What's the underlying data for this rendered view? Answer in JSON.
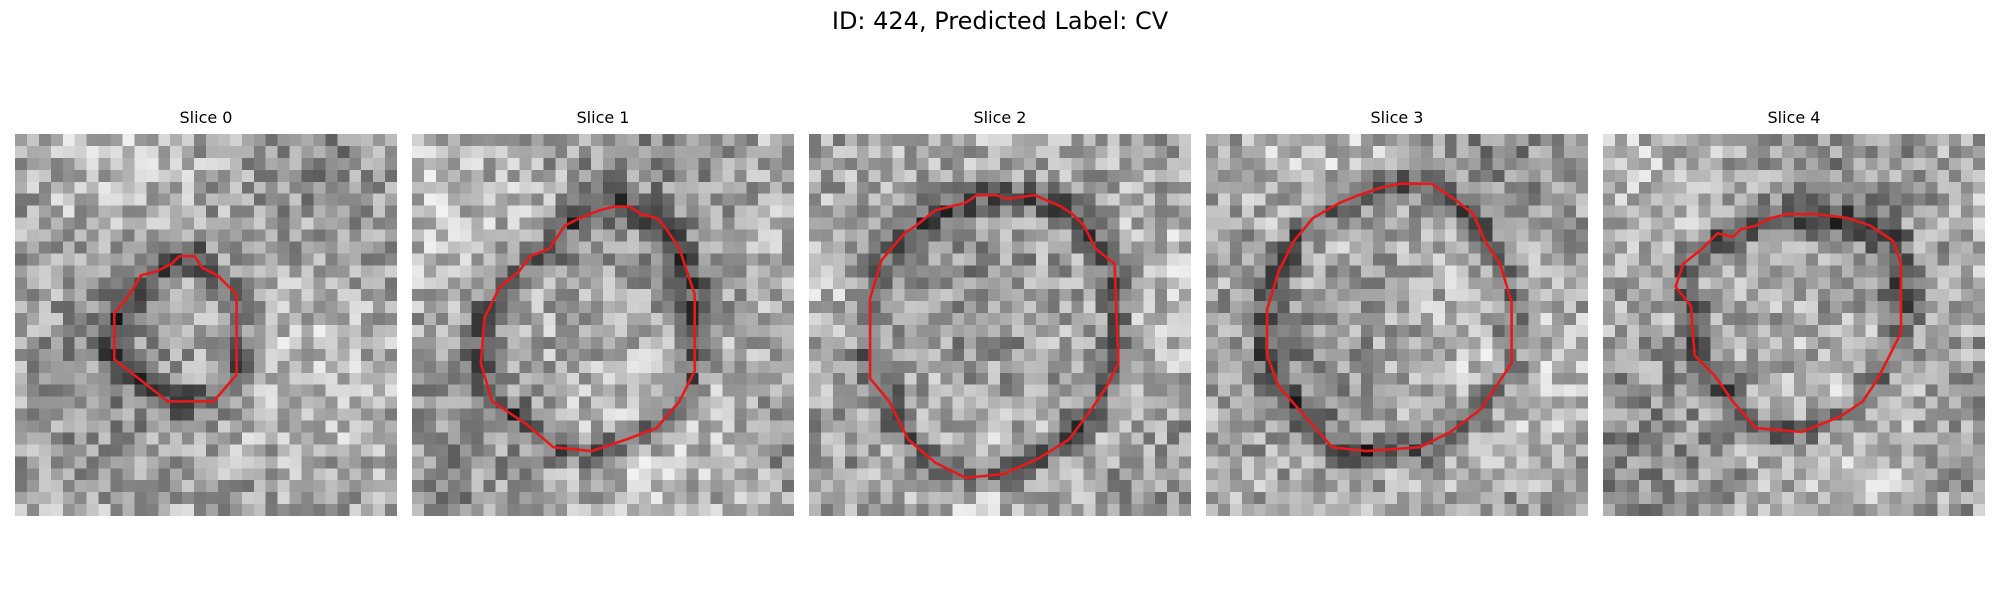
{
  "figure": {
    "title": "ID: 424, Predicted Label: CV"
  },
  "panels": [
    {
      "title": "Slice 0",
      "outline_color": "#e41a1c",
      "image": "grayscale-cryo-slice",
      "contour": [
        [
          0.37,
          0.36
        ],
        [
          0.41,
          0.34
        ],
        [
          0.43,
          0.32
        ],
        [
          0.47,
          0.32
        ],
        [
          0.49,
          0.35
        ],
        [
          0.53,
          0.37
        ],
        [
          0.58,
          0.42
        ],
        [
          0.58,
          0.63
        ],
        [
          0.52,
          0.7
        ],
        [
          0.4,
          0.7
        ],
        [
          0.26,
          0.59
        ],
        [
          0.26,
          0.47
        ],
        [
          0.3,
          0.42
        ],
        [
          0.33,
          0.37
        ]
      ]
    },
    {
      "title": "Slice 1",
      "outline_color": "#e41a1c",
      "image": "grayscale-cryo-slice",
      "contour": [
        [
          0.36,
          0.3
        ],
        [
          0.4,
          0.24
        ],
        [
          0.44,
          0.22
        ],
        [
          0.49,
          0.2
        ],
        [
          0.53,
          0.19
        ],
        [
          0.57,
          0.19
        ],
        [
          0.6,
          0.21
        ],
        [
          0.64,
          0.22
        ],
        [
          0.66,
          0.24
        ],
        [
          0.7,
          0.3
        ],
        [
          0.72,
          0.36
        ],
        [
          0.74,
          0.42
        ],
        [
          0.74,
          0.62
        ],
        [
          0.7,
          0.7
        ],
        [
          0.64,
          0.77
        ],
        [
          0.56,
          0.8
        ],
        [
          0.47,
          0.83
        ],
        [
          0.37,
          0.82
        ],
        [
          0.3,
          0.76
        ],
        [
          0.21,
          0.7
        ],
        [
          0.18,
          0.6
        ],
        [
          0.19,
          0.48
        ],
        [
          0.23,
          0.4
        ],
        [
          0.28,
          0.36
        ],
        [
          0.31,
          0.32
        ]
      ]
    },
    {
      "title": "Slice 2",
      "outline_color": "#e41a1c",
      "image": "grayscale-cryo-slice",
      "contour": [
        [
          0.28,
          0.24
        ],
        [
          0.33,
          0.2
        ],
        [
          0.41,
          0.18
        ],
        [
          0.44,
          0.16
        ],
        [
          0.49,
          0.16
        ],
        [
          0.52,
          0.17
        ],
        [
          0.59,
          0.16
        ],
        [
          0.66,
          0.19
        ],
        [
          0.69,
          0.21
        ],
        [
          0.72,
          0.24
        ],
        [
          0.75,
          0.3
        ],
        [
          0.8,
          0.34
        ],
        [
          0.81,
          0.6
        ],
        [
          0.78,
          0.66
        ],
        [
          0.74,
          0.72
        ],
        [
          0.68,
          0.8
        ],
        [
          0.6,
          0.85
        ],
        [
          0.51,
          0.89
        ],
        [
          0.41,
          0.9
        ],
        [
          0.33,
          0.86
        ],
        [
          0.26,
          0.8
        ],
        [
          0.21,
          0.7
        ],
        [
          0.16,
          0.64
        ],
        [
          0.16,
          0.43
        ],
        [
          0.19,
          0.33
        ],
        [
          0.25,
          0.26
        ]
      ]
    },
    {
      "title": "Slice 3",
      "outline_color": "#e41a1c",
      "image": "grayscale-cryo-slice",
      "contour": [
        [
          0.35,
          0.18
        ],
        [
          0.4,
          0.16
        ],
        [
          0.46,
          0.14
        ],
        [
          0.51,
          0.13
        ],
        [
          0.59,
          0.13
        ],
        [
          0.65,
          0.17
        ],
        [
          0.7,
          0.21
        ],
        [
          0.73,
          0.28
        ],
        [
          0.77,
          0.34
        ],
        [
          0.8,
          0.44
        ],
        [
          0.8,
          0.6
        ],
        [
          0.76,
          0.66
        ],
        [
          0.72,
          0.72
        ],
        [
          0.64,
          0.78
        ],
        [
          0.56,
          0.82
        ],
        [
          0.42,
          0.83
        ],
        [
          0.33,
          0.82
        ],
        [
          0.26,
          0.74
        ],
        [
          0.19,
          0.66
        ],
        [
          0.16,
          0.58
        ],
        [
          0.16,
          0.46
        ],
        [
          0.19,
          0.36
        ],
        [
          0.23,
          0.28
        ],
        [
          0.28,
          0.22
        ]
      ]
    },
    {
      "title": "Slice 4",
      "outline_color": "#e41a1c",
      "image": "grayscale-cryo-slice",
      "contour": [
        [
          0.3,
          0.26
        ],
        [
          0.34,
          0.27
        ],
        [
          0.36,
          0.25
        ],
        [
          0.4,
          0.24
        ],
        [
          0.44,
          0.22
        ],
        [
          0.48,
          0.21
        ],
        [
          0.56,
          0.21
        ],
        [
          0.64,
          0.22
        ],
        [
          0.7,
          0.24
        ],
        [
          0.76,
          0.28
        ],
        [
          0.78,
          0.34
        ],
        [
          0.78,
          0.52
        ],
        [
          0.75,
          0.58
        ],
        [
          0.72,
          0.64
        ],
        [
          0.68,
          0.7
        ],
        [
          0.62,
          0.74
        ],
        [
          0.52,
          0.78
        ],
        [
          0.4,
          0.77
        ],
        [
          0.34,
          0.7
        ],
        [
          0.29,
          0.63
        ],
        [
          0.24,
          0.58
        ],
        [
          0.23,
          0.45
        ],
        [
          0.19,
          0.4
        ],
        [
          0.21,
          0.34
        ],
        [
          0.26,
          0.3
        ]
      ]
    }
  ]
}
